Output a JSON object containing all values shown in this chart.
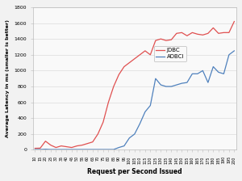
{
  "title": "",
  "xlabel": "Request per Second Issued",
  "ylabel": "Average Latency in ms (smaller is better)",
  "x": [
    10,
    15,
    20,
    25,
    30,
    35,
    40,
    45,
    50,
    55,
    60,
    65,
    70,
    75,
    80,
    85,
    90,
    95,
    100,
    105,
    110,
    115,
    120,
    125,
    130,
    135,
    140,
    145,
    150,
    155,
    160,
    165,
    170,
    175,
    180,
    185,
    190,
    195,
    200
  ],
  "jdbc": [
    20,
    22,
    110,
    60,
    30,
    50,
    40,
    30,
    50,
    60,
    80,
    100,
    200,
    350,
    600,
    800,
    950,
    1050,
    1100,
    1150,
    1200,
    1250,
    1200,
    1380,
    1400,
    1380,
    1390,
    1470,
    1480,
    1440,
    1480,
    1460,
    1450,
    1470,
    1540,
    1470,
    1480,
    1480,
    1620
  ],
  "adbci": [
    5,
    5,
    8,
    5,
    5,
    5,
    5,
    5,
    5,
    5,
    5,
    5,
    5,
    5,
    5,
    5,
    30,
    50,
    150,
    200,
    330,
    480,
    560,
    900,
    820,
    800,
    800,
    820,
    840,
    850,
    960,
    960,
    1000,
    850,
    1050,
    980,
    960,
    1200,
    1250
  ],
  "jdbc_color": "#e05050",
  "adbci_color": "#4f81bd",
  "ylim": [
    0,
    1800
  ],
  "yticks": [
    0,
    200,
    400,
    600,
    800,
    1000,
    1200,
    1400,
    1600,
    1800
  ],
  "xlim": [
    10,
    200
  ],
  "bg_color": "#f2f2f2",
  "plot_bg": "#f9f9f9",
  "legend_labels": [
    "JDBC",
    "ADBCI"
  ],
  "grid_color": "#e0e0e0",
  "linewidth": 0.9
}
